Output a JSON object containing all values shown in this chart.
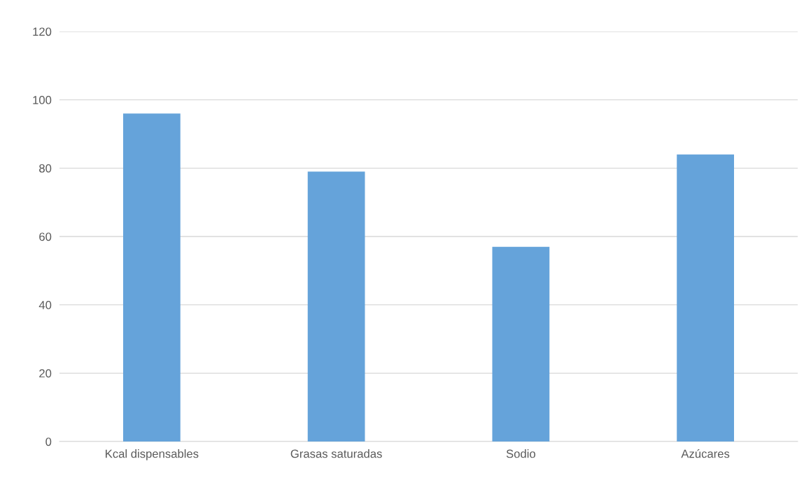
{
  "chart_data": {
    "type": "bar",
    "categories": [
      "Kcal dispensables",
      "Grasas saturadas",
      "Sodio",
      "Azúcares"
    ],
    "values": [
      96,
      79,
      57,
      84
    ],
    "color": "#65a3da",
    "ylim": [
      0,
      120
    ],
    "yticks": [
      0,
      20,
      40,
      60,
      80,
      100,
      120
    ],
    "grid": "y",
    "legend": false
  }
}
